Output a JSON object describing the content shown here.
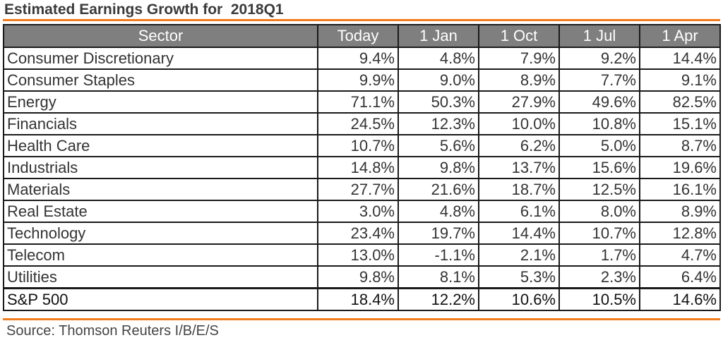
{
  "title": "Estimated Earnings Growth for  2018Q1",
  "colors": {
    "accent_rule": "#f07c1e",
    "header_bg": "#7f7f7f",
    "header_text": "#ffffff",
    "border": "#1a1a1a"
  },
  "table": {
    "headers": [
      "Sector",
      "Today",
      "1 Jan",
      "1 Oct",
      "1 Jul",
      "1 Apr"
    ],
    "rows": [
      [
        "Consumer Discretionary",
        "9.4%",
        "4.8%",
        "7.9%",
        "9.2%",
        "14.4%"
      ],
      [
        "Consumer Staples",
        "9.9%",
        "9.0%",
        "8.9%",
        "7.7%",
        "9.1%"
      ],
      [
        "Energy",
        "71.1%",
        "50.3%",
        "27.9%",
        "49.6%",
        "82.5%"
      ],
      [
        "Financials",
        "24.5%",
        "12.3%",
        "10.0%",
        "10.8%",
        "15.1%"
      ],
      [
        "Health Care",
        "10.7%",
        "5.6%",
        "6.2%",
        "5.0%",
        "8.7%"
      ],
      [
        "Industrials",
        "14.8%",
        "9.8%",
        "13.7%",
        "15.6%",
        "19.6%"
      ],
      [
        "Materials",
        "27.7%",
        "21.6%",
        "18.7%",
        "12.5%",
        "16.1%"
      ],
      [
        "Real Estate",
        "3.0%",
        "4.8%",
        "6.1%",
        "8.0%",
        "8.9%"
      ],
      [
        "Technology",
        "23.4%",
        "19.7%",
        "14.4%",
        "10.7%",
        "12.8%"
      ],
      [
        "Telecom",
        "13.0%",
        "-1.1%",
        "2.1%",
        "1.7%",
        "4.7%"
      ],
      [
        "Utilities",
        "9.8%",
        "8.1%",
        "5.3%",
        "2.3%",
        "6.4%"
      ]
    ],
    "total": [
      "S&P 500",
      "18.4%",
      "12.2%",
      "10.6%",
      "10.5%",
      "14.6%"
    ]
  },
  "source": "Source: Thomson Reuters I/B/E/S"
}
